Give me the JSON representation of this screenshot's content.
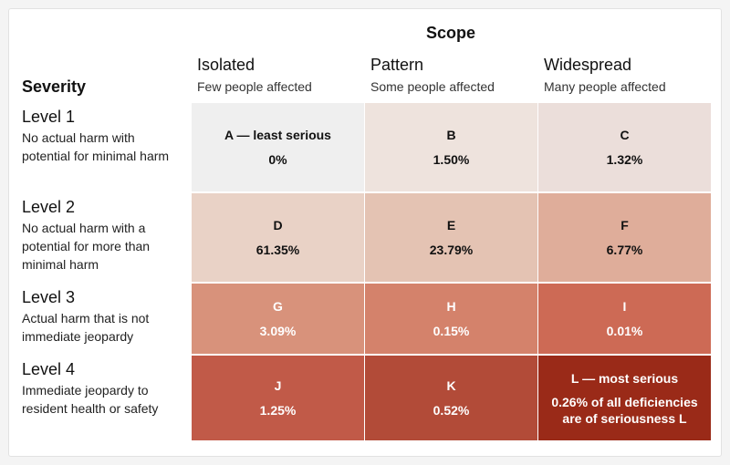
{
  "chart_data": {
    "type": "heatmap",
    "title": "Scope",
    "ylabel": "Severity",
    "x": [
      {
        "label": "Isolated",
        "sub": "Few people affected"
      },
      {
        "label": "Pattern",
        "sub": "Some people affected"
      },
      {
        "label": "Widespread",
        "sub": "Many people affected"
      }
    ],
    "y": [
      {
        "label": "Level 1",
        "desc": "No actual harm with potential for minimal harm"
      },
      {
        "label": "Level 2",
        "desc": "No actual harm with a potential for more than minimal harm"
      },
      {
        "label": "Level 3",
        "desc": "Actual harm that is not immediate jeopardy"
      },
      {
        "label": "Level 4",
        "desc": "Immediate jeopardy to resident health or safety"
      }
    ],
    "cells": [
      [
        {
          "letter": "A — least serious",
          "value_text": "0%",
          "value": 0
        },
        {
          "letter": "B",
          "value_text": "1.50%",
          "value": 1.5
        },
        {
          "letter": "C",
          "value_text": "1.32%",
          "value": 1.32
        }
      ],
      [
        {
          "letter": "D",
          "value_text": "61.35%",
          "value": 61.35
        },
        {
          "letter": "E",
          "value_text": "23.79%",
          "value": 23.79
        },
        {
          "letter": "F",
          "value_text": "6.77%",
          "value": 6.77
        }
      ],
      [
        {
          "letter": "G",
          "value_text": "3.09%",
          "value": 3.09
        },
        {
          "letter": "H",
          "value_text": "0.15%",
          "value": 0.15
        },
        {
          "letter": "I",
          "value_text": "0.01%",
          "value": 0.01
        }
      ],
      [
        {
          "letter": "J",
          "value_text": "1.25%",
          "value": 1.25
        },
        {
          "letter": "K",
          "value_text": "0.52%",
          "value": 0.52
        },
        {
          "letter": "L — most serious",
          "value_text": "0.26% of all deficiencies are of seriousness L",
          "value": 0.26
        }
      ]
    ],
    "colors": [
      [
        "#efefef",
        "#eee3dd",
        "#ebdeda"
      ],
      [
        "#e9d2c6",
        "#e4c3b3",
        "#dfad9a"
      ],
      [
        "#d8927b",
        "#d4826b",
        "#cd6a55"
      ],
      [
        "#c15a48",
        "#b24b38",
        "#9a2a18"
      ]
    ]
  }
}
